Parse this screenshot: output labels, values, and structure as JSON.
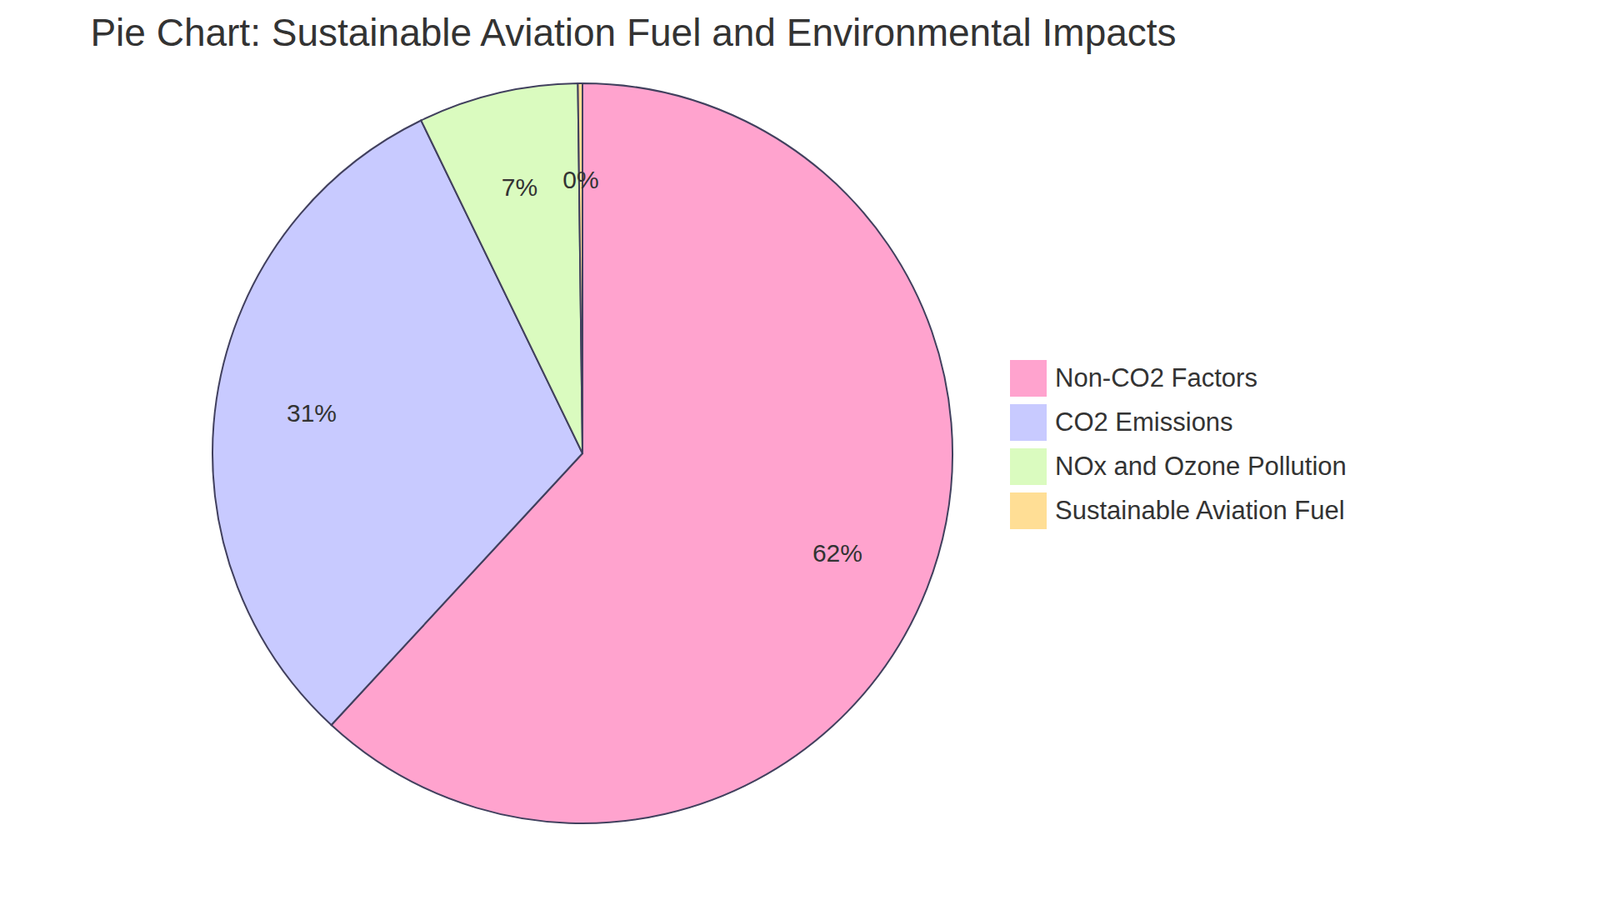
{
  "chart_data": {
    "type": "pie",
    "title": "Pie Chart: Sustainable Aviation Fuel and Environmental Impacts",
    "categories": [
      "Non-CO2 Factors",
      "CO2 Emissions",
      "NOx and Ozone Pollution",
      "Sustainable Aviation Fuel"
    ],
    "values": [
      62,
      31,
      7,
      0.2
    ],
    "value_labels": [
      "62%",
      "31%",
      "7%",
      "0%"
    ],
    "colors": [
      "#ffa3ce",
      "#c8caff",
      "#dafbbf",
      "#ffde95"
    ],
    "data_labels": true,
    "legend": "right"
  }
}
